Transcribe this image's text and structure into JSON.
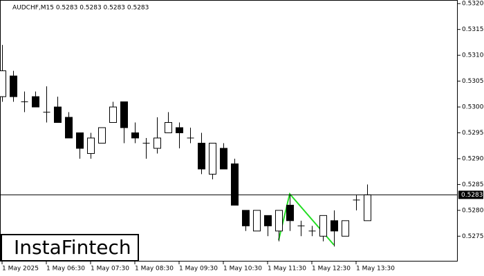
{
  "chart_data": {
    "type": "candlestick",
    "title": "AUDCHF,M15  0.5283 0.5283 0.5283 0.5283",
    "watermark": "InstaFintech",
    "categories": [
      "1 May 2025",
      null,
      null,
      null,
      "1 May 06:30",
      null,
      null,
      null,
      "1 May 07:30",
      null,
      null,
      null,
      "1 May 08:30",
      null,
      null,
      null,
      "1 May 09:30",
      null,
      null,
      null,
      "1 May 10:30",
      null,
      null,
      null,
      "1 May 11:30",
      null,
      null,
      null,
      "1 May 12:30",
      null,
      null,
      null,
      "1 May 13:30",
      null
    ],
    "open": [
      0.5302,
      0.5306,
      0.5301,
      0.5302,
      0.5299,
      0.53,
      0.5298,
      0.5295,
      0.5291,
      0.5293,
      0.5297,
      0.5301,
      0.5295,
      0.5293,
      0.5292,
      0.5295,
      0.5296,
      0.5294,
      0.5293,
      0.5287,
      0.5292,
      0.5289,
      0.528,
      0.5276,
      0.5279,
      0.5276,
      0.5281,
      0.5277,
      0.5276,
      0.5275,
      0.5278,
      0.5275,
      0.5282,
      0.5278
    ],
    "high": [
      0.5312,
      0.5307,
      0.5303,
      0.5303,
      0.5304,
      0.5302,
      0.5299,
      0.5295,
      0.5295,
      0.5296,
      0.5301,
      0.5301,
      0.5297,
      0.5294,
      0.5298,
      0.5299,
      0.5297,
      0.5296,
      0.5295,
      0.5293,
      0.5293,
      0.529,
      0.528,
      0.528,
      0.5279,
      0.528,
      0.5283,
      0.5278,
      0.5277,
      0.5279,
      0.528,
      0.5278,
      0.5283,
      0.5285
    ],
    "low": [
      0.5301,
      0.5301,
      0.5299,
      0.53,
      0.5297,
      0.5297,
      0.5294,
      0.529,
      0.529,
      0.5293,
      0.5297,
      0.5293,
      0.5293,
      0.529,
      0.5291,
      0.5295,
      0.5292,
      0.5293,
      0.5287,
      0.5286,
      0.5288,
      0.5281,
      0.5276,
      0.5276,
      0.5275,
      0.5274,
      0.5276,
      0.5275,
      0.5275,
      0.5274,
      0.5273,
      0.5275,
      0.528,
      0.5278
    ],
    "close": [
      0.5307,
      0.5302,
      0.5301,
      0.53,
      0.5299,
      0.5297,
      0.5294,
      0.5292,
      0.5294,
      0.5296,
      0.53,
      0.5296,
      0.5294,
      0.5293,
      0.5294,
      0.5297,
      0.5295,
      0.5294,
      0.5288,
      0.5293,
      0.5288,
      0.5281,
      0.5277,
      0.528,
      0.5277,
      0.528,
      0.5278,
      0.5277,
      0.5276,
      0.5279,
      0.5276,
      0.5278,
      0.5282,
      0.5283
    ],
    "up_color": "#ffffff",
    "down_color": "#000000",
    "last_price": 0.5283,
    "ylim": [
      0.52701,
      0.53207
    ],
    "yticks": [
      0.5275,
      {
        "value": 0.528,
        "label": "0.5280"
      },
      0.5285,
      {
        "value": 0.529,
        "label": "0.5290"
      },
      0.5295,
      {
        "value": 0.53,
        "label": "0.5300"
      },
      0.5305,
      {
        "value": 0.531,
        "label": "0.5310"
      },
      0.5315,
      {
        "value": 0.532,
        "label": "0.5320"
      }
    ]
  }
}
